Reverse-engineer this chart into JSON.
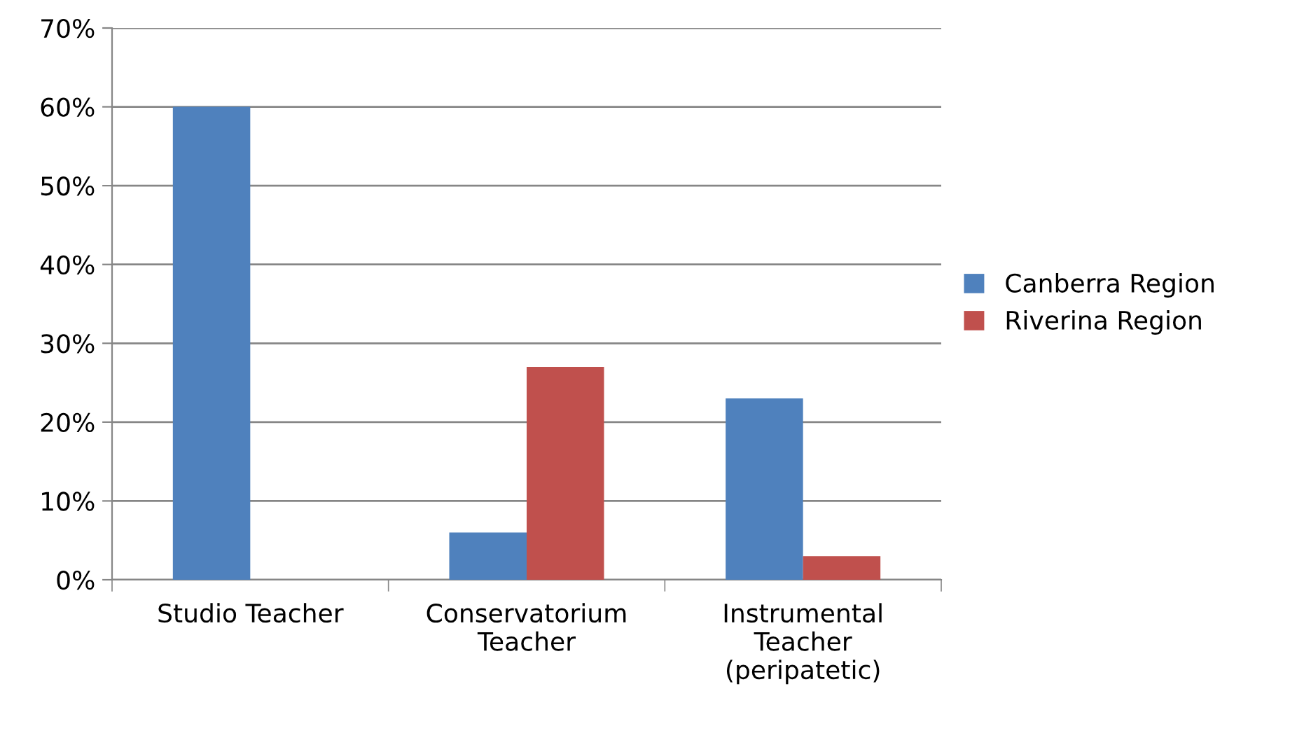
{
  "chart_data": {
    "type": "bar",
    "categories": [
      "Studio Teacher",
      "Conservatorium\nTeacher",
      "Instrumental\nTeacher\n(peripatetic)"
    ],
    "series": [
      {
        "name": "Canberra Region",
        "color": "#4f81bd",
        "values": [
          60,
          6,
          23
        ]
      },
      {
        "name": "Riverina Region",
        "color": "#c0504d",
        "values": [
          0,
          27,
          3
        ]
      }
    ],
    "ylim": [
      0,
      70
    ],
    "yticks": [
      {
        "value": 0,
        "label": "0%"
      },
      {
        "value": 10,
        "label": "10%"
      },
      {
        "value": 20,
        "label": "20%"
      },
      {
        "value": 30,
        "label": "30%"
      },
      {
        "value": 40,
        "label": "40%"
      },
      {
        "value": 50,
        "label": "50%"
      },
      {
        "value": 60,
        "label": "60%"
      },
      {
        "value": 70,
        "label": "70%"
      }
    ],
    "grid": "y",
    "legend": "right"
  }
}
